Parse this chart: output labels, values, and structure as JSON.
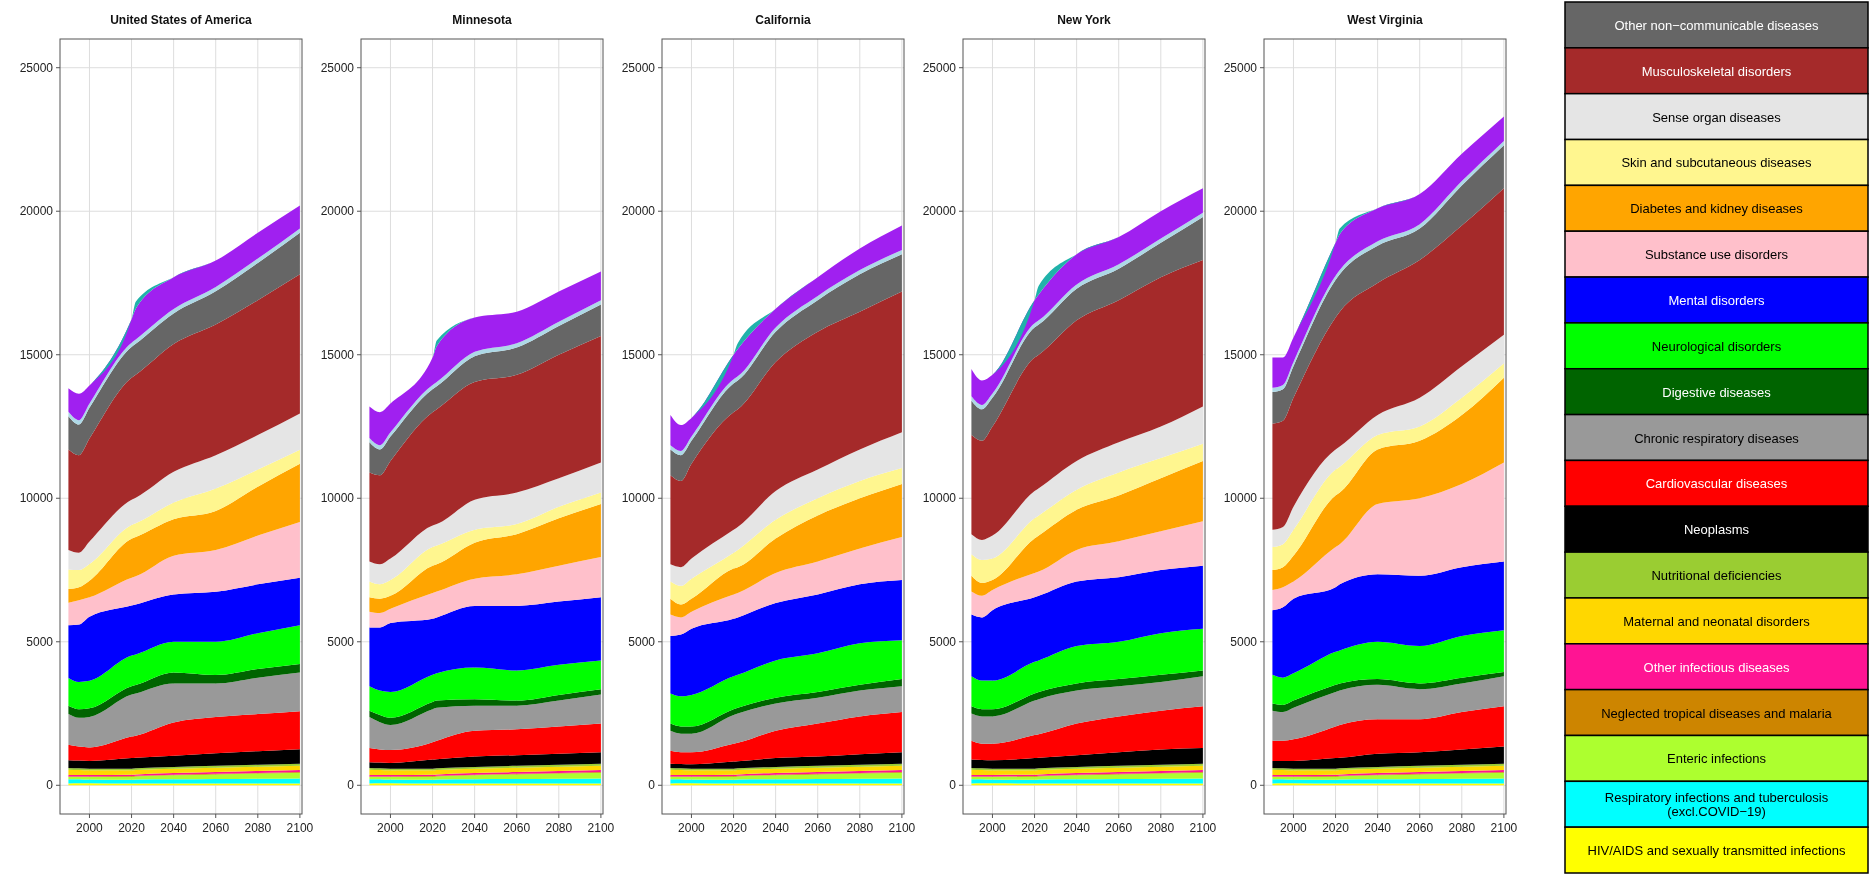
{
  "chart_data": [
    {
      "type": "area",
      "stacked": true,
      "title": "United States of America",
      "x": [
        1990,
        1995,
        2000,
        2020,
        2022,
        2040,
        2060,
        2080,
        2100
      ],
      "xlim": [
        1986,
        2101
      ],
      "ylim": [
        -1000,
        26000
      ],
      "xticks": [
        2000,
        2020,
        2040,
        2060,
        2080,
        2100
      ],
      "yticks": [
        0,
        5000,
        10000,
        15000,
        20000,
        25000
      ],
      "grid": true,
      "series": [
        {
          "color": "#ffff00",
          "values": [
            60,
            70,
            70,
            60,
            60,
            60,
            60,
            60,
            60
          ]
        },
        {
          "color": "#00ffff",
          "values": [
            150,
            140,
            130,
            130,
            140,
            150,
            160,
            170,
            180
          ]
        },
        {
          "color": "#adff2f",
          "values": [
            80,
            80,
            90,
            110,
            110,
            140,
            160,
            180,
            200
          ]
        },
        {
          "color": "#cd8500",
          "values": [
            20,
            20,
            20,
            20,
            20,
            20,
            20,
            20,
            20
          ]
        },
        {
          "color": "#ff1493",
          "values": [
            50,
            50,
            50,
            50,
            50,
            60,
            60,
            70,
            70
          ]
        },
        {
          "color": "#ffd700",
          "values": [
            180,
            170,
            160,
            150,
            150,
            150,
            150,
            150,
            150
          ]
        },
        {
          "color": "#9acd32",
          "values": [
            60,
            60,
            60,
            60,
            60,
            60,
            70,
            70,
            70
          ]
        },
        {
          "color": "#000000",
          "values": [
            270,
            270,
            270,
            370,
            370,
            390,
            440,
            470,
            510
          ]
        },
        {
          "color": "#ff0000",
          "values": [
            540,
            490,
            470,
            750,
            770,
            1160,
            1260,
            1290,
            1320
          ]
        },
        {
          "color": "#999999",
          "values": [
            1070,
            1000,
            1060,
            1460,
            1470,
            1360,
            1170,
            1270,
            1350
          ]
        },
        {
          "color": "#006400",
          "values": [
            290,
            300,
            300,
            290,
            290,
            380,
            290,
            300,
            300
          ]
        },
        {
          "color": "#00ff00",
          "values": [
            970,
            950,
            960,
            1070,
            1070,
            1070,
            1160,
            1250,
            1350
          ]
        },
        {
          "color": "#0000ff",
          "values": [
            1840,
            2000,
            2230,
            1740,
            1740,
            1650,
            1740,
            1700,
            1650
          ]
        },
        {
          "color": "#ffc0cb",
          "values": [
            780,
            850,
            680,
            970,
            980,
            1350,
            1460,
            1700,
            1940
          ]
        },
        {
          "color": "#ffa500",
          "values": [
            480,
            450,
            580,
            1360,
            1370,
            1270,
            1360,
            1700,
            2030
          ]
        },
        {
          "color": "#fff68f",
          "values": [
            680,
            600,
            580,
            480,
            480,
            580,
            780,
            600,
            490
          ]
        },
        {
          "color": "#e5e5e5",
          "values": [
            680,
            600,
            780,
            880,
            890,
            1070,
            1160,
            1200,
            1260
          ]
        },
        {
          "color": "#a52a2a",
          "values": [
            3500,
            3400,
            3590,
            4250,
            4280,
            4450,
            4550,
            4700,
            4850
          ]
        },
        {
          "color": "#666666",
          "values": [
            1160,
            1070,
            1070,
            1070,
            1080,
            1070,
            1160,
            1300,
            1450
          ]
        },
        {
          "color": "#add8e6",
          "values": [
            150,
            150,
            150,
            150,
            150,
            150,
            150,
            150,
            150
          ]
        },
        {
          "color": "#a020f0",
          "values": [
            820,
            920,
            630,
            820,
            1070,
            1110,
            920,
            900,
            800
          ]
        },
        {
          "color": "#20b2aa",
          "values": [
            0,
            0,
            0,
            0,
            250,
            0,
            0,
            0,
            0
          ]
        }
      ]
    },
    {
      "type": "area",
      "stacked": true,
      "title": "Minnesota",
      "x": [
        1990,
        1995,
        2000,
        2020,
        2022,
        2040,
        2060,
        2080,
        2100
      ],
      "xlim": [
        1986,
        2101
      ],
      "ylim": [
        -1000,
        26000
      ],
      "xticks": [
        2000,
        2020,
        2040,
        2060,
        2080,
        2100
      ],
      "yticks": [
        0,
        5000,
        10000,
        15000,
        20000,
        25000
      ],
      "grid": true,
      "series": [
        {
          "color": "#ffff00",
          "values": [
            60,
            70,
            70,
            60,
            60,
            60,
            60,
            60,
            60
          ]
        },
        {
          "color": "#00ffff",
          "values": [
            150,
            140,
            130,
            130,
            140,
            150,
            160,
            170,
            180
          ]
        },
        {
          "color": "#adff2f",
          "values": [
            80,
            80,
            90,
            110,
            110,
            140,
            160,
            180,
            200
          ]
        },
        {
          "color": "#cd8500",
          "values": [
            20,
            20,
            20,
            20,
            20,
            20,
            20,
            20,
            20
          ]
        },
        {
          "color": "#ff1493",
          "values": [
            50,
            50,
            50,
            50,
            50,
            60,
            60,
            70,
            70
          ]
        },
        {
          "color": "#ffd700",
          "values": [
            180,
            170,
            160,
            150,
            150,
            150,
            150,
            150,
            150
          ]
        },
        {
          "color": "#9acd32",
          "values": [
            60,
            60,
            60,
            60,
            60,
            60,
            70,
            70,
            70
          ]
        },
        {
          "color": "#000000",
          "values": [
            200,
            200,
            200,
            320,
            320,
            360,
            370,
            380,
            400
          ]
        },
        {
          "color": "#ff0000",
          "values": [
            500,
            460,
            450,
            600,
            640,
            900,
            900,
            950,
            1000
          ]
        },
        {
          "color": "#999999",
          "values": [
            1080,
            950,
            870,
            1150,
            1150,
            870,
            820,
            900,
            1010
          ]
        },
        {
          "color": "#006400",
          "values": [
            220,
            250,
            250,
            250,
            250,
            230,
            180,
            200,
            190
          ]
        },
        {
          "color": "#00ff00",
          "values": [
            850,
            850,
            900,
            950,
            950,
            1100,
            1050,
            1050,
            1000
          ]
        },
        {
          "color": "#0000ff",
          "values": [
            2050,
            2200,
            2400,
            1950,
            1950,
            2150,
            2250,
            2200,
            2200
          ]
        },
        {
          "color": "#ffc0cb",
          "values": [
            550,
            500,
            500,
            900,
            900,
            950,
            1100,
            1250,
            1400
          ]
        },
        {
          "color": "#ffa500",
          "values": [
            500,
            500,
            450,
            950,
            950,
            1250,
            1400,
            1650,
            1850
          ]
        },
        {
          "color": "#fff68f",
          "values": [
            550,
            500,
            550,
            650,
            650,
            450,
            350,
            400,
            400
          ]
        },
        {
          "color": "#e5e5e5",
          "values": [
            700,
            700,
            750,
            750,
            750,
            1050,
            1100,
            1000,
            1050
          ]
        },
        {
          "color": "#a52a2a",
          "values": [
            3100,
            3100,
            3400,
            3950,
            4000,
            4100,
            4100,
            4300,
            4400
          ]
        },
        {
          "color": "#666666",
          "values": [
            1050,
            900,
            850,
            800,
            800,
            900,
            950,
            1000,
            1100
          ]
        },
        {
          "color": "#add8e6",
          "values": [
            150,
            150,
            150,
            150,
            150,
            150,
            150,
            150,
            150
          ]
        },
        {
          "color": "#a020f0",
          "values": [
            1100,
            1150,
            1000,
            950,
            1250,
            1200,
            1100,
            1050,
            1000
          ]
        },
        {
          "color": "#20b2aa",
          "values": [
            0,
            0,
            0,
            0,
            200,
            0,
            0,
            0,
            0
          ]
        }
      ]
    },
    {
      "type": "area",
      "stacked": true,
      "title": "California",
      "x": [
        1990,
        1995,
        2000,
        2020,
        2022,
        2040,
        2060,
        2080,
        2100
      ],
      "xlim": [
        1986,
        2101
      ],
      "ylim": [
        -1000,
        26000
      ],
      "xticks": [
        2000,
        2020,
        2040,
        2060,
        2080,
        2100
      ],
      "yticks": [
        0,
        5000,
        10000,
        15000,
        20000,
        25000
      ],
      "grid": true,
      "series": [
        {
          "color": "#ffff00",
          "values": [
            60,
            70,
            70,
            60,
            60,
            60,
            60,
            60,
            60
          ]
        },
        {
          "color": "#00ffff",
          "values": [
            150,
            140,
            130,
            130,
            140,
            150,
            160,
            170,
            180
          ]
        },
        {
          "color": "#adff2f",
          "values": [
            80,
            80,
            90,
            110,
            110,
            140,
            160,
            180,
            200
          ]
        },
        {
          "color": "#cd8500",
          "values": [
            20,
            20,
            20,
            20,
            20,
            20,
            20,
            20,
            20
          ]
        },
        {
          "color": "#ff1493",
          "values": [
            50,
            50,
            50,
            50,
            50,
            60,
            60,
            70,
            70
          ]
        },
        {
          "color": "#ffd700",
          "values": [
            180,
            170,
            160,
            150,
            150,
            150,
            150,
            150,
            150
          ]
        },
        {
          "color": "#9acd32",
          "values": [
            60,
            60,
            60,
            60,
            60,
            60,
            70,
            70,
            70
          ]
        },
        {
          "color": "#000000",
          "values": [
            150,
            150,
            150,
            250,
            250,
            310,
            320,
            360,
            400
          ]
        },
        {
          "color": "#ff0000",
          "values": [
            450,
            410,
            420,
            620,
            640,
            950,
            1150,
            1320,
            1400
          ]
        },
        {
          "color": "#999999",
          "values": [
            700,
            650,
            650,
            1000,
            1020,
            950,
            900,
            900,
            900
          ]
        },
        {
          "color": "#006400",
          "values": [
            250,
            250,
            250,
            200,
            200,
            200,
            200,
            200,
            250
          ]
        },
        {
          "color": "#00ff00",
          "values": [
            1050,
            1050,
            1100,
            1150,
            1150,
            1300,
            1350,
            1450,
            1350
          ]
        },
        {
          "color": "#0000ff",
          "values": [
            2000,
            2150,
            2300,
            2000,
            2000,
            2000,
            2050,
            2050,
            2100
          ]
        },
        {
          "color": "#ffc0cb",
          "values": [
            750,
            600,
            600,
            850,
            850,
            1050,
            1150,
            1250,
            1500
          ]
        },
        {
          "color": "#ffa500",
          "values": [
            550,
            450,
            450,
            900,
            900,
            1200,
            1600,
            1750,
            1850
          ]
        },
        {
          "color": "#fff68f",
          "values": [
            600,
            650,
            700,
            550,
            600,
            650,
            600,
            600,
            550
          ]
        },
        {
          "color": "#e5e5e5",
          "values": [
            600,
            650,
            700,
            800,
            800,
            1000,
            1000,
            1100,
            1250
          ]
        },
        {
          "color": "#a52a2a",
          "values": [
            3100,
            3000,
            3300,
            4100,
            4100,
            4500,
            4800,
            4800,
            4900
          ]
        },
        {
          "color": "#666666",
          "values": [
            900,
            900,
            800,
            1000,
            1000,
            1050,
            1100,
            1300,
            1300
          ]
        },
        {
          "color": "#add8e6",
          "values": [
            150,
            150,
            150,
            150,
            150,
            150,
            150,
            150,
            150
          ]
        },
        {
          "color": "#a020f0",
          "values": [
            1050,
            900,
            650,
            850,
            950,
            650,
            650,
            750,
            850
          ]
        },
        {
          "color": "#20b2aa",
          "values": [
            0,
            0,
            0,
            0,
            200,
            0,
            0,
            0,
            0
          ]
        }
      ]
    },
    {
      "type": "area",
      "stacked": true,
      "title": "New York",
      "x": [
        1990,
        1995,
        2000,
        2020,
        2022,
        2040,
        2060,
        2080,
        2100
      ],
      "xlim": [
        1986,
        2101
      ],
      "ylim": [
        -1000,
        26000
      ],
      "xticks": [
        2000,
        2020,
        2040,
        2060,
        2080,
        2100
      ],
      "yticks": [
        0,
        5000,
        10000,
        15000,
        20000,
        25000
      ],
      "grid": true,
      "series": [
        {
          "color": "#ffff00",
          "values": [
            60,
            70,
            70,
            60,
            60,
            60,
            60,
            60,
            60
          ]
        },
        {
          "color": "#00ffff",
          "values": [
            150,
            140,
            130,
            130,
            140,
            150,
            160,
            170,
            180
          ]
        },
        {
          "color": "#adff2f",
          "values": [
            80,
            80,
            90,
            110,
            110,
            140,
            160,
            180,
            200
          ]
        },
        {
          "color": "#cd8500",
          "values": [
            20,
            20,
            20,
            20,
            20,
            20,
            20,
            20,
            20
          ]
        },
        {
          "color": "#ff1493",
          "values": [
            50,
            50,
            50,
            50,
            50,
            60,
            60,
            70,
            70
          ]
        },
        {
          "color": "#ffd700",
          "values": [
            180,
            170,
            160,
            150,
            150,
            150,
            150,
            150,
            150
          ]
        },
        {
          "color": "#9acd32",
          "values": [
            60,
            60,
            60,
            60,
            60,
            60,
            70,
            70,
            70
          ]
        },
        {
          "color": "#000000",
          "values": [
            300,
            290,
            290,
            370,
            370,
            410,
            470,
            530,
            550
          ]
        },
        {
          "color": "#ff0000",
          "values": [
            650,
            570,
            580,
            800,
            820,
            1100,
            1250,
            1350,
            1450
          ]
        },
        {
          "color": "#999999",
          "values": [
            950,
            950,
            950,
            1200,
            1220,
            1150,
            1050,
            1000,
            1050
          ]
        },
        {
          "color": "#006400",
          "values": [
            250,
            250,
            250,
            250,
            250,
            250,
            250,
            250,
            200
          ]
        },
        {
          "color": "#00ff00",
          "values": [
            1050,
            1000,
            1000,
            1100,
            1100,
            1300,
            1300,
            1450,
            1450
          ]
        },
        {
          "color": "#0000ff",
          "values": [
            2150,
            2200,
            2450,
            2250,
            2250,
            2250,
            2250,
            2200,
            2200
          ]
        },
        {
          "color": "#ffc0cb",
          "values": [
            800,
            750,
            700,
            850,
            850,
            1100,
            1250,
            1350,
            1550
          ]
        },
        {
          "color": "#ffa500",
          "values": [
            550,
            450,
            350,
            1200,
            1250,
            1400,
            1600,
            1850,
            2100
          ]
        },
        {
          "color": "#fff68f",
          "values": [
            750,
            800,
            750,
            700,
            700,
            700,
            800,
            700,
            600
          ]
        },
        {
          "color": "#e5e5e5",
          "values": [
            700,
            700,
            800,
            950,
            950,
            1000,
            1050,
            1100,
            1300
          ]
        },
        {
          "color": "#a52a2a",
          "values": [
            3450,
            3450,
            3800,
            4650,
            4650,
            4900,
            4950,
            5200,
            5100
          ]
        },
        {
          "color": "#666666",
          "values": [
            1200,
            1100,
            1000,
            1050,
            1050,
            1100,
            1100,
            1200,
            1500
          ]
        },
        {
          "color": "#add8e6",
          "values": [
            150,
            150,
            150,
            150,
            150,
            150,
            150,
            150,
            150
          ]
        },
        {
          "color": "#a020f0",
          "values": [
            950,
            850,
            650,
            800,
            900,
            1050,
            950,
            950,
            850
          ]
        },
        {
          "color": "#20b2aa",
          "values": [
            0,
            0,
            0,
            0,
            300,
            0,
            0,
            0,
            0
          ]
        }
      ]
    },
    {
      "type": "area",
      "stacked": true,
      "title": "West Virginia",
      "x": [
        1990,
        1995,
        2000,
        2020,
        2022,
        2040,
        2060,
        2080,
        2100
      ],
      "xlim": [
        1986,
        2101
      ],
      "ylim": [
        -1000,
        26000
      ],
      "xticks": [
        2000,
        2020,
        2040,
        2060,
        2080,
        2100
      ],
      "yticks": [
        0,
        5000,
        10000,
        15000,
        20000,
        25000
      ],
      "grid": true,
      "legend": "right",
      "series": [
        {
          "name": "HIV/AIDS and sexually transmitted infections",
          "color": "#ffff00",
          "values": [
            60,
            70,
            70,
            60,
            60,
            60,
            60,
            60,
            60
          ]
        },
        {
          "name": "Respiratory infections and tuberculosis (excl.COVID−19)",
          "color": "#00ffff",
          "values": [
            150,
            140,
            130,
            130,
            140,
            150,
            160,
            170,
            180
          ]
        },
        {
          "name": "Enteric infections",
          "color": "#adff2f",
          "values": [
            80,
            80,
            90,
            110,
            110,
            140,
            160,
            180,
            200
          ]
        },
        {
          "name": "Neglected tropical diseases and malaria",
          "color": "#cd8500",
          "values": [
            20,
            20,
            20,
            20,
            20,
            20,
            20,
            20,
            20
          ]
        },
        {
          "name": "Other infectious diseases",
          "color": "#ff1493",
          "values": [
            50,
            50,
            50,
            50,
            50,
            60,
            60,
            70,
            70
          ]
        },
        {
          "name": "Maternal and neonatal disorders",
          "color": "#ffd700",
          "values": [
            180,
            170,
            160,
            150,
            150,
            150,
            150,
            150,
            150
          ]
        },
        {
          "name": "Nutritional deficiencies",
          "color": "#9acd32",
          "values": [
            60,
            60,
            60,
            60,
            60,
            60,
            70,
            70,
            70
          ]
        },
        {
          "name": "Neoplasms",
          "color": "#000000",
          "values": [
            250,
            260,
            270,
            370,
            370,
            460,
            470,
            530,
            600
          ]
        },
        {
          "name": "Cardiovascular diseases",
          "color": "#ff0000",
          "values": [
            700,
            700,
            750,
            1100,
            1140,
            1200,
            1150,
            1300,
            1400
          ]
        },
        {
          "name": "Chronic respiratory diseases",
          "color": "#999999",
          "values": [
            1050,
            1000,
            1100,
            1200,
            1200,
            1200,
            1050,
            1000,
            1050
          ]
        },
        {
          "name": "Digestive diseases",
          "color": "#006400",
          "values": [
            250,
            250,
            250,
            250,
            250,
            200,
            200,
            200,
            150
          ]
        },
        {
          "name": "Neurological disorders",
          "color": "#00ff00",
          "values": [
            1000,
            950,
            950,
            1150,
            1150,
            1300,
            1300,
            1450,
            1450
          ]
        },
        {
          "name": "Mental disorders",
          "color": "#0000ff",
          "values": [
            2250,
            2450,
            2600,
            2250,
            2300,
            2350,
            2450,
            2400,
            2400
          ]
        },
        {
          "name": "Substance use disorders",
          "color": "#ffc0cb",
          "values": [
            700,
            700,
            600,
            1400,
            1400,
            2450,
            2700,
            2900,
            3450
          ]
        },
        {
          "name": "Diabetes and kidney diseases",
          "color": "#ffa500",
          "values": [
            700,
            700,
            900,
            1800,
            1800,
            1900,
            2000,
            2400,
            2950
          ]
        },
        {
          "name": "Skin and subcutaneous diseases",
          "color": "#fff68f",
          "values": [
            800,
            800,
            900,
            900,
            900,
            500,
            500,
            600,
            500
          ]
        },
        {
          "name": "Sense organ diseases",
          "color": "#e5e5e5",
          "values": [
            600,
            600,
            800,
            700,
            700,
            700,
            1000,
            1100,
            1000
          ]
        },
        {
          "name": "Musculoskeletal disorders",
          "color": "#a52a2a",
          "values": [
            3700,
            3700,
            3800,
            4600,
            4700,
            4600,
            4800,
            4900,
            5100
          ]
        },
        {
          "name": "Other non−communicable diseases",
          "color": "#666666",
          "values": [
            1100,
            1100,
            1100,
            1300,
            1300,
            1300,
            1100,
            1400,
            1500
          ]
        },
        {
          "color": "#add8e6",
          "values": [
            150,
            150,
            150,
            150,
            150,
            150,
            150,
            150,
            150
          ]
        },
        {
          "color": "#a020f0",
          "values": [
            1050,
            950,
            850,
            1150,
            1250,
            1150,
            1050,
            950,
            850
          ]
        },
        {
          "color": "#20b2aa",
          "values": [
            0,
            0,
            0,
            0,
            200,
            0,
            0,
            0,
            0
          ]
        }
      ]
    }
  ]
}
